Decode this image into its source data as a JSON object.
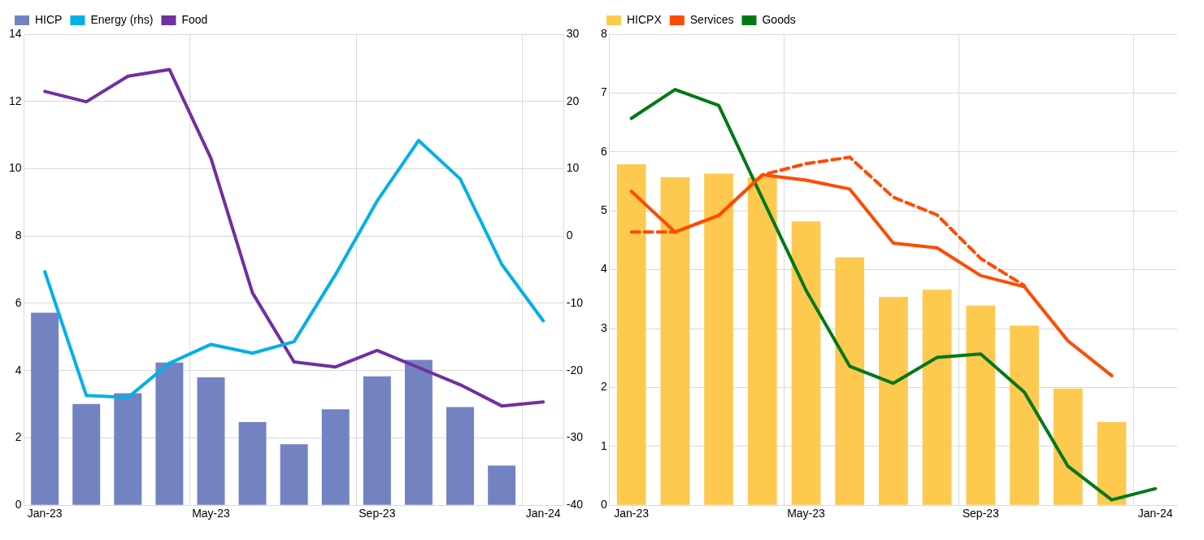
{
  "chart_data": [
    {
      "type": "bar",
      "categories": [
        "Jan-23",
        null,
        null,
        null,
        "May-23",
        null,
        null,
        null,
        "Sep-23",
        null,
        null,
        null,
        "Jan-24"
      ],
      "ylim": [
        0,
        14
      ],
      "yticks": [
        0,
        2,
        4,
        6,
        8,
        10,
        12,
        14
      ],
      "y2lim": [
        -40,
        30
      ],
      "y2ticks": [
        -40,
        -30,
        -20,
        -10,
        0,
        10,
        20,
        30
      ],
      "grid": true,
      "legend": "top left",
      "series": [
        {
          "name": "HICP",
          "color": "#7383c1",
          "values": [
            5.72,
            3.01,
            3.33,
            4.24,
            3.8,
            2.47,
            1.81,
            2.85,
            3.83,
            4.32,
            2.92,
            1.18,
            null
          ]
        },
        {
          "name": "Energy (rhs)",
          "type": "line",
          "axis": "y2",
          "color": "#00b0e6",
          "values": [
            -5.3,
            -23.7,
            -24.0,
            -18.9,
            -16.1,
            -17.4,
            -15.7,
            -5.7,
            5.2,
            14.2,
            8.5,
            -4.2,
            -12.6
          ]
        },
        {
          "name": "Food",
          "type": "line",
          "color": "#7030a0",
          "values": [
            12.3,
            11.99,
            12.75,
            12.95,
            10.31,
            6.31,
            4.26,
            4.11,
            4.6,
            4.09,
            3.58,
            2.95,
            3.07
          ]
        }
      ]
    },
    {
      "type": "bar",
      "categories": [
        "Jan-23",
        null,
        null,
        null,
        "May-23",
        null,
        null,
        null,
        "Sep-23",
        null,
        null,
        null,
        "Jan-24"
      ],
      "ylim": [
        0,
        8
      ],
      "yticks": [
        0,
        1,
        2,
        3,
        4,
        5,
        6,
        7,
        8
      ],
      "grid": true,
      "legend": "top left",
      "series": [
        {
          "name": "HICPX",
          "color": "#fdc94f",
          "values": [
            5.79,
            5.57,
            5.63,
            5.57,
            4.82,
            4.21,
            3.54,
            3.66,
            3.39,
            3.05,
            1.98,
            1.41,
            null
          ]
        },
        {
          "name": "Services",
          "type": "line",
          "color": "#ff4b00",
          "values": [
            5.33,
            4.64,
            4.92,
            5.61,
            5.52,
            5.37,
            4.45,
            4.37,
            3.9,
            3.71,
            2.79,
            2.2,
            null
          ]
        },
        {
          "name": "Goods",
          "type": "line",
          "color": "#007816",
          "values": [
            6.57,
            7.06,
            6.79,
            5.21,
            3.65,
            2.36,
            2.07,
            2.51,
            2.57,
            1.92,
            0.66,
            0.09,
            0.28
          ]
        },
        {
          "type": "line",
          "color": "#ff4b00",
          "line_style": "dashed",
          "values": [
            4.64,
            4.64,
            4.92,
            5.61,
            5.8,
            5.91,
            5.23,
            4.93,
            4.19,
            3.73,
            null,
            null,
            null
          ]
        }
      ]
    }
  ]
}
